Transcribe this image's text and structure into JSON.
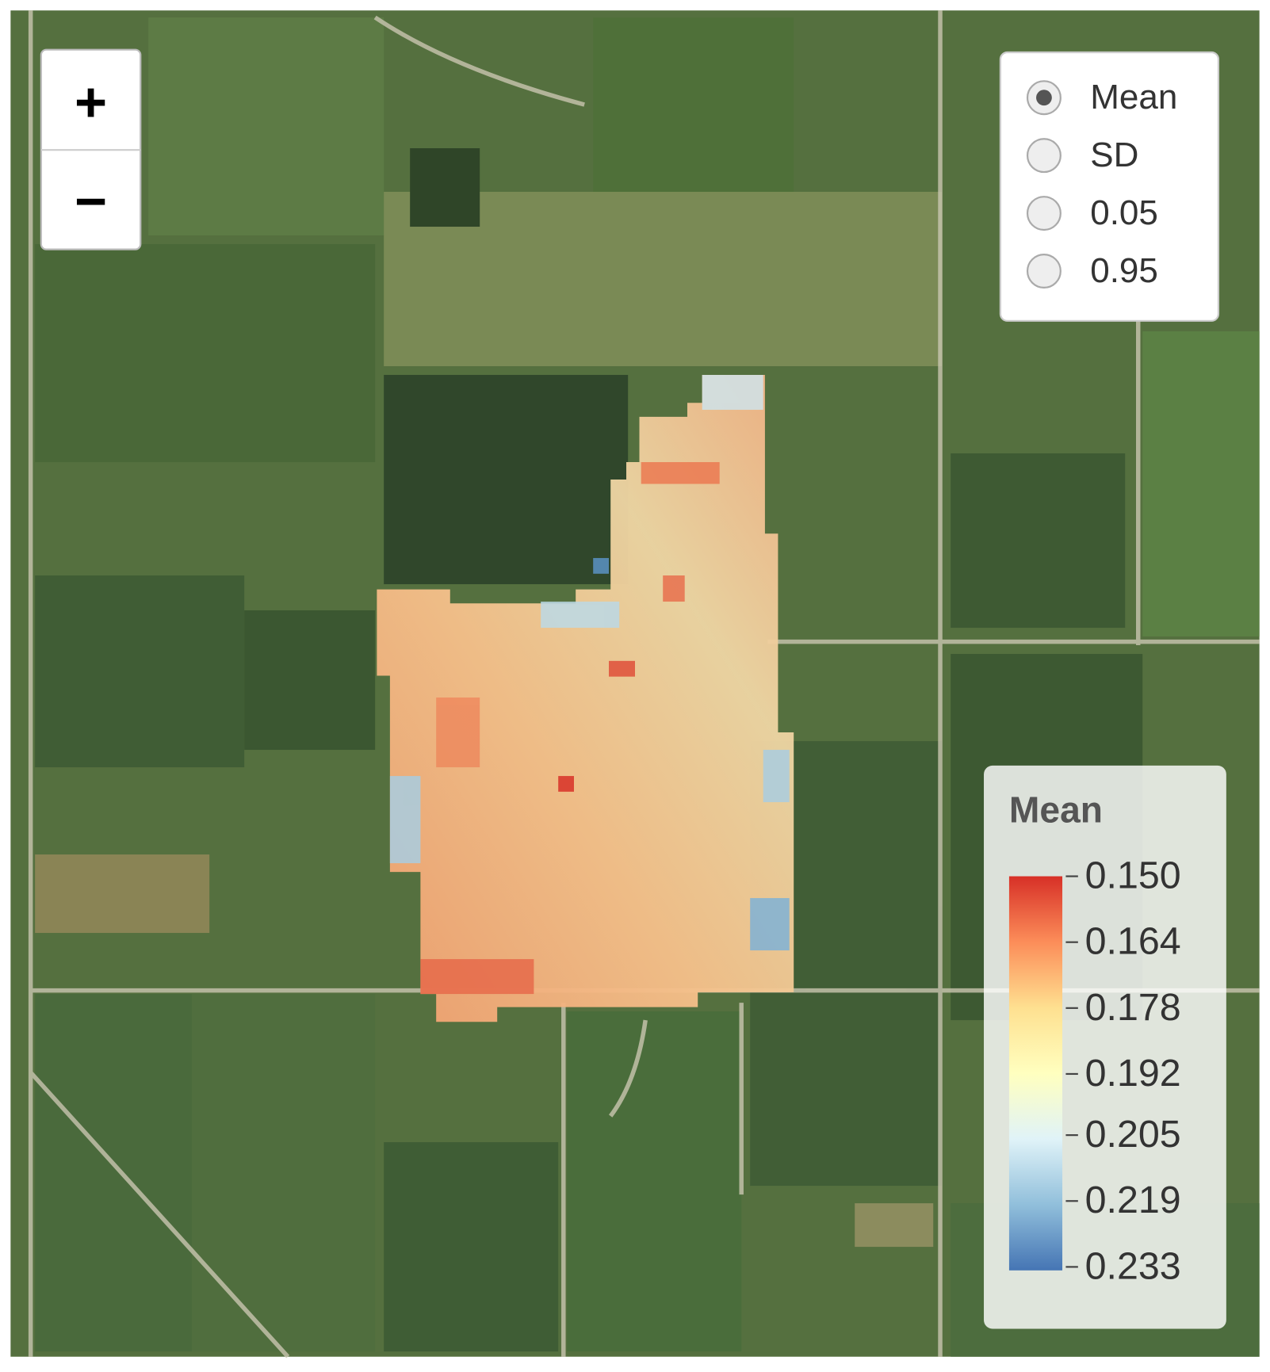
{
  "zoom_control": {
    "zoom_in": "+",
    "zoom_out": "−"
  },
  "layers_control": {
    "options": [
      {
        "label": "Mean",
        "checked": true
      },
      {
        "label": "SD",
        "checked": false
      },
      {
        "label": "0.05",
        "checked": false
      },
      {
        "label": "0.95",
        "checked": false
      }
    ]
  },
  "legend": {
    "title": "Mean",
    "colors": [
      "#d73027",
      "#fc8d59",
      "#fee090",
      "#ffffbf",
      "#e0f3f8",
      "#91bfdb",
      "#4575b4"
    ],
    "ticks": [
      {
        "value": 0.15,
        "label": "0.150"
      },
      {
        "value": 0.164,
        "label": "0.164"
      },
      {
        "value": 0.178,
        "label": "0.178"
      },
      {
        "value": 0.192,
        "label": "0.192"
      },
      {
        "value": 0.205,
        "label": "0.205"
      },
      {
        "value": 0.219,
        "label": "0.219"
      },
      {
        "value": 0.233,
        "label": "0.233"
      }
    ]
  }
}
